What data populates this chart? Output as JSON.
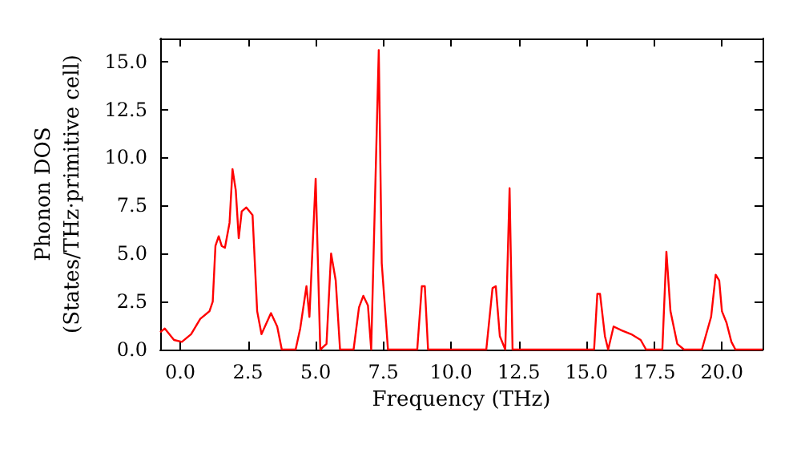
{
  "chart_data": {
    "type": "line",
    "xlabel": "Frequency (THz)",
    "ylabel": "Phonon DOS\n(States/THz·primitive cell)",
    "x": [
      -0.74,
      -0.57,
      -0.23,
      0.06,
      0.4,
      0.74,
      1.08,
      1.2,
      1.3,
      1.42,
      1.53,
      1.65,
      1.82,
      1.93,
      2.05,
      2.16,
      2.27,
      2.44,
      2.67,
      2.84,
      3.0,
      3.35,
      3.58,
      3.75,
      4.26,
      4.43,
      4.66,
      4.77,
      5.0,
      5.17,
      5.4,
      5.57,
      5.74,
      5.9,
      6.4,
      6.6,
      6.76,
      6.93,
      7.05,
      7.33,
      7.44,
      7.67,
      8.75,
      8.92,
      9.03,
      9.15,
      11.3,
      11.53,
      11.65,
      11.8,
      12.0,
      12.16,
      12.27,
      15.28,
      15.4,
      15.5,
      15.68,
      15.8,
      16.0,
      16.3,
      16.65,
      17.0,
      17.2,
      17.8,
      17.95,
      18.1,
      18.35,
      18.6,
      19.26,
      19.6,
      19.77,
      19.9,
      20.0,
      20.17,
      20.35,
      20.5,
      21.5
    ],
    "series": [
      {
        "color": "#ff0000",
        "values": [
          0.9,
          1.1,
          0.5,
          0.4,
          0.8,
          1.6,
          2.0,
          2.5,
          5.4,
          5.9,
          5.4,
          5.3,
          6.6,
          9.4,
          8.3,
          5.8,
          7.2,
          7.4,
          7.0,
          2.0,
          0.8,
          1.9,
          1.2,
          0,
          0,
          1.1,
          3.3,
          1.7,
          8.9,
          0,
          0.3,
          5.0,
          3.6,
          0,
          0,
          2.2,
          2.8,
          2.3,
          0,
          15.6,
          4.5,
          0,
          0,
          3.3,
          3.3,
          0,
          0,
          3.2,
          3.3,
          0.7,
          0,
          8.4,
          0,
          0,
          2.9,
          2.9,
          0.7,
          0,
          1.2,
          1.0,
          0.8,
          0.5,
          0,
          0,
          5.1,
          2.0,
          0.3,
          0,
          0,
          1.7,
          3.9,
          3.6,
          2.0,
          1.4,
          0.4,
          0,
          0
        ]
      }
    ],
    "xlim": [
      -0.74,
      21.5
    ],
    "ylim": [
      0,
      16.2
    ],
    "xticks": [
      {
        "value": 0,
        "label": "0.0"
      },
      {
        "value": 2.5,
        "label": "2.5"
      },
      {
        "value": 5,
        "label": "5.0"
      },
      {
        "value": 7.5,
        "label": "7.5"
      },
      {
        "value": 10,
        "label": "10.0"
      },
      {
        "value": 12.5,
        "label": "12.5"
      },
      {
        "value": 15,
        "label": "15.0"
      },
      {
        "value": 17.5,
        "label": "17.5"
      },
      {
        "value": 20,
        "label": "20.0"
      }
    ],
    "yticks": [
      {
        "value": 0,
        "label": "0.0"
      },
      {
        "value": 2.5,
        "label": "2.5"
      },
      {
        "value": 5,
        "label": "5.0"
      },
      {
        "value": 7.5,
        "label": "7.5"
      },
      {
        "value": 10,
        "label": "10.0"
      },
      {
        "value": 12.5,
        "label": "12.5"
      },
      {
        "value": 15,
        "label": "15.0"
      }
    ],
    "grid": false,
    "marker": "none",
    "line_style": "solid"
  }
}
